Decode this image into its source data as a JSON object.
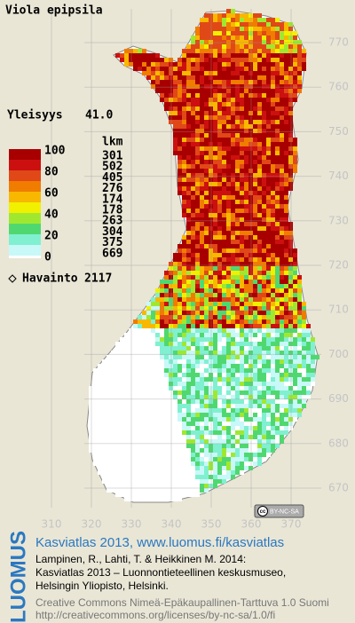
{
  "title": "Viola epipsila",
  "frequency": {
    "label": "Yleisyys",
    "value": "41.0"
  },
  "legend": {
    "scale": [
      100,
      80,
      60,
      40,
      20,
      0
    ],
    "count_header": "lkm",
    "counts": [
      301,
      502,
      405,
      276,
      174,
      178,
      263,
      304,
      375,
      669
    ],
    "colors": [
      "#a80000",
      "#cc1010",
      "#e04818",
      "#f07c00",
      "#f8b800",
      "#f0f000",
      "#a0e830",
      "#50d870",
      "#80f0d0",
      "#c8f8f8"
    ]
  },
  "observations": {
    "label": "Havainto",
    "value": 2117
  },
  "map_axes": {
    "x_ticks": [
      310,
      320,
      330,
      340,
      350,
      360,
      370
    ],
    "y_ticks": [
      770,
      760,
      750,
      740,
      730,
      720,
      710,
      700,
      690,
      680,
      670
    ]
  },
  "license_badge": {
    "icon": "cc",
    "text": "BY-NC-SA"
  },
  "footer": {
    "logo": "LUOMUS",
    "headline": "Kasviatlas 2013, www.luomus.fi/kasviatlas",
    "citation": [
      "Lampinen, R., Lahti, T. & Heikkinen M. 2014:",
      "Kasviatlas 2013 – Luonnontieteellinen keskusmuseo,",
      "Helsingin Yliopisto, Helsinki."
    ],
    "license": [
      "Creative Commons Nimeä-Epäkaupallinen-Tarttuva 1.0 Suomi",
      "http://creativecommons.org/licenses/by-nc-sa/1.0/fi"
    ]
  }
}
